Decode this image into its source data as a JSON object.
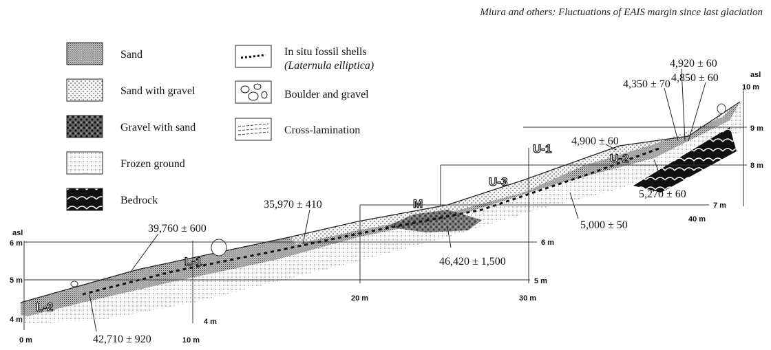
{
  "header": {
    "title": "Miura and others: Fluctuations of EAIS margin since last glaciation"
  },
  "legend": [
    {
      "label": "Sand"
    },
    {
      "label": "Sand with gravel"
    },
    {
      "label": "Gravel with sand"
    },
    {
      "label": "Frozen ground"
    },
    {
      "label": "Bedrock"
    },
    {
      "label": "In situ  fossil shells",
      "sublabel": "(Laternula elliptica)"
    },
    {
      "label": "Boulder and gravel"
    },
    {
      "label": "Cross-lamination"
    }
  ],
  "units": [
    "L-1",
    "L-2",
    "M",
    "U-1",
    "U-2",
    "U-3"
  ],
  "dates": [
    "39,760 ± 600",
    "42,710 ± 920",
    "35,970 ± 410",
    "46,420 ± 1,500",
    "5,000 ± 50",
    "5,270 ± 60",
    "4,900 ± 60",
    "4,350 ± 70",
    "4,920 ± 60",
    "4,850 ± 60"
  ],
  "scale": {
    "lower_asl": "asl",
    "lower_heights": [
      "6 m",
      "5 m",
      "4 m"
    ],
    "mid_heights": [
      "6 m",
      "5 m",
      "4 m"
    ],
    "distances": [
      "0 m",
      "10 m",
      "20 m",
      "30 m",
      "40 m"
    ],
    "upper_asl": "asl",
    "upper_heights": [
      "10 m",
      "9 m",
      "8 m",
      "7 m"
    ]
  }
}
